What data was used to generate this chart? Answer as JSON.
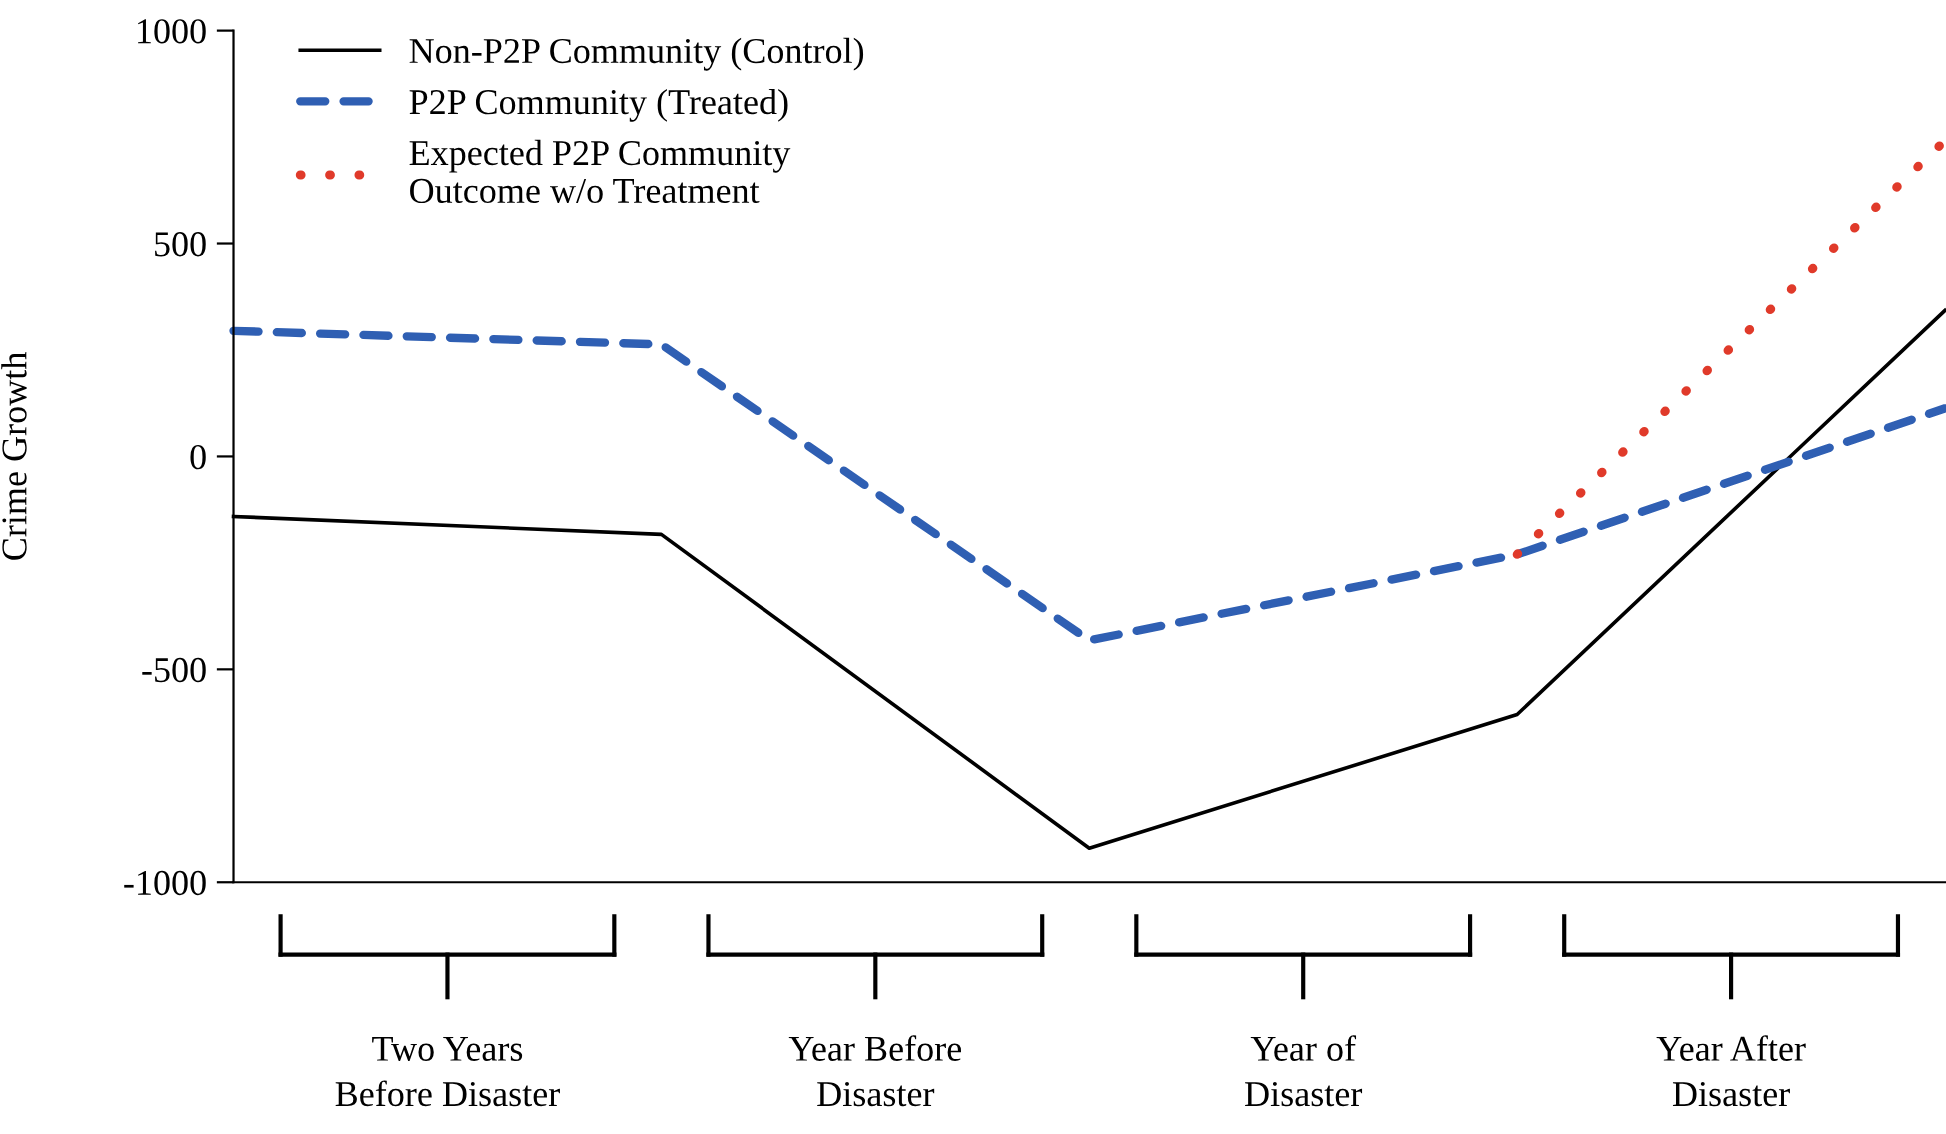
{
  "chart_data": {
    "type": "line",
    "ylabel": "Crime Growth",
    "categories": [
      null,
      null,
      null,
      null,
      null
    ],
    "ylim": [
      -1000,
      1000
    ],
    "yticks": [
      -1000,
      -500,
      0,
      500,
      1000
    ],
    "grid": false,
    "legend": "top left",
    "tick_labels": "y",
    "marker": "none",
    "series": [
      {
        "name": "Non-P2P Community (Control)",
        "color": "#000000",
        "line_style": "solid",
        "values": [
          -141,
          -183,
          -920,
          -606,
          343
        ]
      },
      {
        "name": "P2P Community (Treated)",
        "color": "#2f5fb3",
        "line_style": "dashed",
        "values": [
          295,
          263,
          -432,
          -230,
          113
        ]
      },
      {
        "name": "Expected P2P Community\nOutcome w/o Treatment",
        "color": "#e03a2a",
        "line_style": "dotted",
        "values": [
          null,
          null,
          null,
          -230,
          742
        ]
      }
    ],
    "annotations": [
      "Two Years\nBefore Disaster",
      "Year Before\nDisaster",
      "Year of\nDisaster",
      "Year After\nDisaster"
    ]
  }
}
